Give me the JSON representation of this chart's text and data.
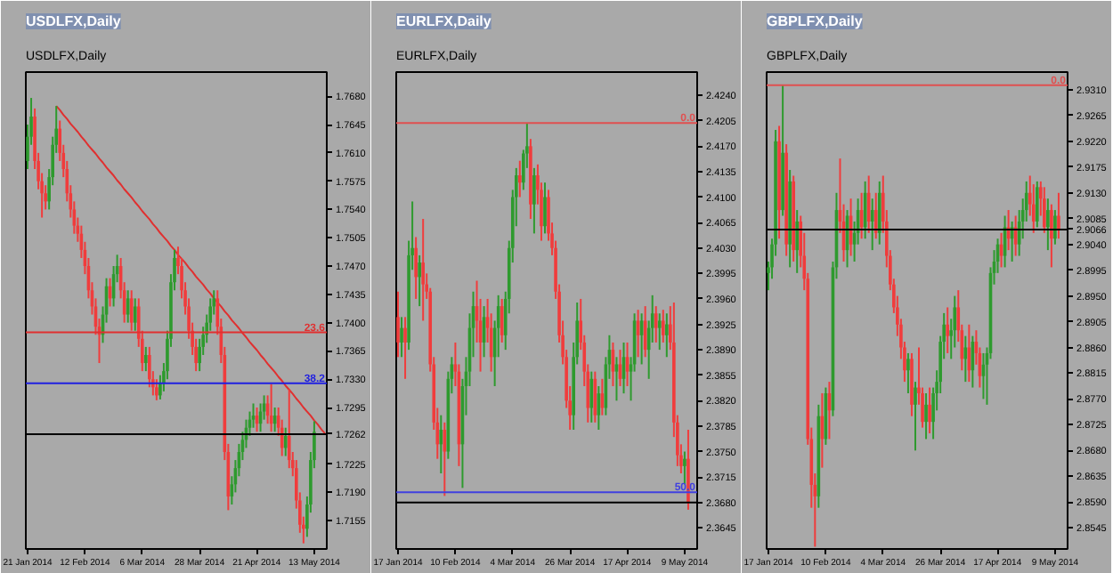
{
  "chart_data": [
    {
      "type": "candlestick",
      "title": "USDLFX,Daily",
      "subtitle": "USDLFX,Daily",
      "categories": [
        "21 Jan 2014",
        null,
        null,
        null,
        null,
        null,
        null,
        null,
        null,
        null,
        null,
        null,
        null,
        null,
        null,
        null,
        "12 Feb 2014",
        null,
        null,
        null,
        null,
        null,
        null,
        null,
        null,
        null,
        null,
        null,
        null,
        null,
        null,
        null,
        "6 Mar 2014",
        null,
        null,
        null,
        null,
        null,
        null,
        null,
        null,
        null,
        null,
        null,
        null,
        null,
        null,
        null,
        "28 Mar 2014",
        null,
        null,
        null,
        null,
        null,
        null,
        null,
        null,
        null,
        null,
        null,
        null,
        null,
        null,
        null,
        "21 Apr 2014",
        null,
        null,
        null,
        null,
        null,
        null,
        null,
        null,
        null,
        null,
        null,
        null,
        null,
        null,
        null,
        "13 May 2014",
        null,
        null,
        null
      ],
      "ohlc": [
        [
          1.76,
          1.7645,
          1.759,
          1.763
        ],
        [
          1.763,
          1.7678,
          1.762,
          1.7655
        ],
        [
          1.7655,
          1.7665,
          1.759,
          1.76
        ],
        [
          1.76,
          1.761,
          1.7565,
          1.7575
        ],
        [
          1.7575,
          1.7585,
          1.753,
          1.756
        ],
        [
          1.756,
          1.757,
          1.754,
          1.755
        ],
        [
          1.755,
          1.759,
          1.754,
          1.758
        ],
        [
          1.758,
          1.763,
          1.757,
          1.762
        ],
        [
          1.762,
          1.7668,
          1.761,
          1.764
        ],
        [
          1.764,
          1.765,
          1.76,
          1.761
        ],
        [
          1.761,
          1.762,
          1.758,
          1.759
        ],
        [
          1.759,
          1.76,
          1.755,
          1.756
        ],
        [
          1.756,
          1.757,
          1.753,
          1.754
        ],
        [
          1.754,
          1.755,
          1.751,
          1.752
        ],
        [
          1.752,
          1.753,
          1.75,
          1.751
        ],
        [
          1.751,
          1.752,
          1.748,
          1.749
        ],
        [
          1.749,
          1.75,
          1.746,
          1.747
        ],
        [
          1.747,
          1.748,
          1.743,
          1.744
        ],
        [
          1.744,
          1.745,
          1.741,
          1.742
        ],
        [
          1.742,
          1.743,
          1.7385,
          1.7395
        ],
        [
          1.7395,
          1.7405,
          1.735,
          1.7385
        ],
        [
          1.7385,
          1.742,
          1.7375,
          1.741
        ],
        [
          1.741,
          1.7455,
          1.74,
          1.7445
        ],
        [
          1.7445,
          1.7455,
          1.742,
          1.743
        ],
        [
          1.743,
          1.747,
          1.742,
          1.746
        ],
        [
          1.746,
          1.7484,
          1.745,
          1.747
        ],
        [
          1.747,
          1.748,
          1.743,
          1.744
        ],
        [
          1.744,
          1.745,
          1.74,
          1.741
        ],
        [
          1.741,
          1.744,
          1.74,
          1.743
        ],
        [
          1.743,
          1.744,
          1.739,
          1.74
        ],
        [
          1.74,
          1.743,
          1.739,
          1.742
        ],
        [
          1.742,
          1.743,
          1.737,
          1.738
        ],
        [
          1.738,
          1.739,
          1.734,
          1.735
        ],
        [
          1.735,
          1.737,
          1.734,
          1.736
        ],
        [
          1.736,
          1.737,
          1.732,
          1.733
        ],
        [
          1.733,
          1.734,
          1.731,
          1.732
        ],
        [
          1.732,
          1.733,
          1.7304,
          1.731
        ],
        [
          1.731,
          1.7335,
          1.7305,
          1.7325
        ],
        [
          1.7325,
          1.735,
          1.7315,
          1.734
        ],
        [
          1.734,
          1.739,
          1.733,
          1.738
        ],
        [
          1.738,
          1.746,
          1.737,
          1.745
        ],
        [
          1.745,
          1.749,
          1.744,
          1.748
        ],
        [
          1.748,
          1.7494,
          1.746,
          1.747
        ],
        [
          1.747,
          1.748,
          1.743,
          1.744
        ],
        [
          1.744,
          1.745,
          1.741,
          1.742
        ],
        [
          1.742,
          1.743,
          1.738,
          1.739
        ],
        [
          1.739,
          1.74,
          1.736,
          1.737
        ],
        [
          1.737,
          1.738,
          1.734,
          1.735
        ],
        [
          1.735,
          1.738,
          1.734,
          1.737
        ],
        [
          1.737,
          1.7395,
          1.736,
          1.7385
        ],
        [
          1.7385,
          1.741,
          1.7375,
          1.74
        ],
        [
          1.74,
          1.743,
          1.739,
          1.742
        ],
        [
          1.742,
          1.744,
          1.741,
          1.743
        ],
        [
          1.743,
          1.744,
          1.7385,
          1.7395
        ],
        [
          1.7395,
          1.7405,
          1.735,
          1.736
        ],
        [
          1.736,
          1.737,
          1.723,
          1.724
        ],
        [
          1.724,
          1.725,
          1.7168,
          1.7185
        ],
        [
          1.7185,
          1.721,
          1.7175,
          1.72
        ],
        [
          1.72,
          1.723,
          1.719,
          1.722
        ],
        [
          1.722,
          1.725,
          1.721,
          1.724
        ],
        [
          1.724,
          1.7265,
          1.723,
          1.7255
        ],
        [
          1.7255,
          1.728,
          1.7245,
          1.727
        ],
        [
          1.727,
          1.729,
          1.726,
          1.728
        ],
        [
          1.728,
          1.73,
          1.727,
          1.7285
        ],
        [
          1.7285,
          1.7295,
          1.7265,
          1.7275
        ],
        [
          1.7275,
          1.73,
          1.7265,
          1.729
        ],
        [
          1.729,
          1.731,
          1.728,
          1.73
        ],
        [
          1.73,
          1.731,
          1.7275,
          1.7285
        ],
        [
          1.7285,
          1.7324,
          1.7265,
          1.7275
        ],
        [
          1.7275,
          1.7295,
          1.7265,
          1.7285
        ],
        [
          1.7285,
          1.7295,
          1.726,
          1.727
        ],
        [
          1.727,
          1.728,
          1.7235,
          1.7245
        ],
        [
          1.7245,
          1.727,
          1.7235,
          1.726
        ],
        [
          1.726,
          1.7318,
          1.722,
          1.723
        ],
        [
          1.723,
          1.724,
          1.721,
          1.722
        ],
        [
          1.722,
          1.723,
          1.717,
          1.718
        ],
        [
          1.718,
          1.719,
          1.714,
          1.715
        ],
        [
          1.715,
          1.716,
          1.7127,
          1.7145
        ],
        [
          1.7145,
          1.7185,
          1.7135,
          1.7175
        ],
        [
          1.7175,
          1.724,
          1.7165,
          1.723
        ],
        [
          1.723,
          1.7278,
          1.722,
          1.7265
        ],
        null,
        null,
        null
      ],
      "series": [
        {
          "type": "line",
          "color": "#e03030",
          "values": [
            null,
            null,
            null,
            null,
            null,
            null,
            null,
            null,
            1.7668,
            1.7663,
            1.7657,
            1.7652,
            1.7646,
            1.7641,
            1.7636,
            1.763,
            1.7625,
            1.7619,
            1.7614,
            1.7609,
            1.7603,
            1.7598,
            1.7592,
            1.7587,
            1.7582,
            1.7576,
            1.7571,
            1.7565,
            1.756,
            1.7555,
            1.7549,
            1.7544,
            1.7538,
            1.7533,
            1.7528,
            1.7522,
            1.7517,
            1.7511,
            1.7506,
            1.7501,
            1.7495,
            1.749,
            1.7484,
            1.7479,
            1.7474,
            1.7468,
            1.7463,
            1.7457,
            1.7452,
            1.7447,
            1.7441,
            1.7436,
            1.743,
            1.7425,
            1.742,
            1.7414,
            1.7409,
            1.7403,
            1.7398,
            1.7393,
            1.7387,
            1.7382,
            1.7376,
            1.7371,
            1.7366,
            1.736,
            1.7355,
            1.7349,
            1.7344,
            1.7339,
            1.7333,
            1.7328,
            1.7322,
            1.7317,
            1.7312,
            1.7306,
            1.7301,
            1.7295,
            1.729,
            1.7285,
            1.7279,
            1.7274,
            1.7268,
            1.7263
          ]
        }
      ],
      "ylim": [
        1.712,
        1.771
      ],
      "yticks": [
        {
          "value": 1.768,
          "label": "1.7680"
        },
        1.7645,
        {
          "value": 1.761,
          "label": "1.7610"
        },
        1.7575,
        {
          "value": 1.754,
          "label": "1.7540"
        },
        1.7505,
        {
          "value": 1.747,
          "label": "1.7470"
        },
        1.7435,
        {
          "value": 1.74,
          "label": "1.7400"
        },
        1.7365,
        {
          "value": 1.733,
          "label": "1.7330"
        },
        1.7295,
        1.7225,
        {
          "value": 1.719,
          "label": "1.7190"
        },
        1.7155
      ],
      "annotations": [
        {
          "text": "23.6",
          "y": 1.7388
        },
        {
          "text": "38.2",
          "y": 1.7325
        }
      ],
      "ref_lines": [
        {
          "axis": "y",
          "value": 1.7388,
          "color": "#e03030"
        },
        {
          "axis": "y",
          "value": 1.7325,
          "color": "#2020e0"
        },
        {
          "axis": "y",
          "value": 1.7262,
          "label": "1.7262",
          "color": "#000000"
        }
      ]
    },
    {
      "type": "candlestick",
      "title": "EURLFX,Daily",
      "subtitle": "EURLFX,Daily",
      "categories": [
        "17 Jan 2014",
        null,
        null,
        null,
        null,
        null,
        null,
        null,
        null,
        null,
        null,
        null,
        null,
        null,
        null,
        null,
        "10 Feb 2014",
        null,
        null,
        null,
        null,
        null,
        null,
        null,
        null,
        null,
        null,
        null,
        null,
        null,
        null,
        null,
        "4 Mar 2014",
        null,
        null,
        null,
        null,
        null,
        null,
        null,
        null,
        null,
        null,
        null,
        null,
        null,
        null,
        null,
        "26 Mar 2014",
        null,
        null,
        null,
        null,
        null,
        null,
        null,
        null,
        null,
        null,
        null,
        null,
        null,
        null,
        null,
        "17 Apr 2014",
        null,
        null,
        null,
        null,
        null,
        null,
        null,
        null,
        null,
        null,
        null,
        null,
        null,
        null,
        null,
        "9 May 2014",
        null,
        null,
        null
      ],
      "ohlc": [
        [
          2.3935,
          2.397,
          2.388,
          2.39
        ],
        [
          2.39,
          2.3935,
          2.388,
          2.392
        ],
        [
          2.392,
          2.3935,
          2.385,
          2.39
        ],
        [
          2.39,
          2.404,
          2.389,
          2.402
        ],
        [
          2.402,
          2.4094,
          2.4,
          2.403
        ],
        [
          2.403,
          2.4045,
          2.396,
          2.399
        ],
        [
          2.399,
          2.402,
          2.395,
          2.401
        ],
        [
          2.401,
          2.407,
          2.393,
          2.398
        ],
        [
          2.398,
          2.3995,
          2.396,
          2.397
        ],
        [
          2.397,
          2.3975,
          2.386,
          2.387
        ],
        [
          2.387,
          2.388,
          2.378,
          2.379
        ],
        [
          2.379,
          2.381,
          2.374,
          2.376
        ],
        [
          2.376,
          2.38,
          2.372,
          2.378
        ],
        [
          2.378,
          2.379,
          2.3689,
          2.375
        ],
        [
          2.375,
          2.386,
          2.374,
          2.385
        ],
        [
          2.385,
          2.388,
          2.383,
          2.387
        ],
        [
          2.387,
          2.39,
          2.384,
          2.386
        ],
        [
          2.386,
          2.387,
          2.373,
          2.376
        ],
        [
          2.376,
          2.385,
          2.37,
          2.384
        ],
        [
          2.384,
          2.388,
          2.38,
          2.386
        ],
        [
          2.386,
          2.394,
          2.384,
          2.392
        ],
        [
          2.392,
          2.397,
          2.388,
          2.395
        ],
        [
          2.395,
          2.3985,
          2.39,
          2.393
        ],
        [
          2.393,
          2.396,
          2.386,
          2.39
        ],
        [
          2.39,
          2.395,
          2.388,
          2.3935
        ],
        [
          2.3935,
          2.396,
          2.39,
          2.392
        ],
        [
          2.392,
          2.394,
          2.386,
          2.388
        ],
        [
          2.388,
          2.393,
          2.384,
          2.392
        ],
        [
          2.392,
          2.3965,
          2.388,
          2.395
        ],
        [
          2.395,
          2.396,
          2.39,
          2.391
        ],
        [
          2.391,
          2.397,
          2.389,
          2.396
        ],
        [
          2.396,
          2.404,
          2.394,
          2.403
        ],
        [
          2.403,
          2.411,
          2.401,
          2.41
        ],
        [
          2.41,
          2.414,
          2.406,
          2.413
        ],
        [
          2.413,
          2.415,
          2.41,
          2.412
        ],
        [
          2.412,
          2.4165,
          2.411,
          2.416
        ],
        [
          2.416,
          2.4202,
          2.414,
          2.417
        ],
        [
          2.417,
          2.418,
          2.407,
          2.409
        ],
        [
          2.409,
          2.414,
          2.405,
          2.413
        ],
        [
          2.413,
          2.4145,
          2.409,
          2.411
        ],
        [
          2.411,
          2.412,
          2.404,
          2.406
        ],
        [
          2.406,
          2.412,
          2.405,
          2.41
        ],
        [
          2.41,
          2.411,
          2.404,
          2.405
        ],
        [
          2.405,
          2.4065,
          2.402,
          2.403
        ],
        [
          2.403,
          2.404,
          2.396,
          2.397
        ],
        [
          2.397,
          2.398,
          2.39,
          2.391
        ],
        [
          2.391,
          2.393,
          2.387,
          2.388
        ],
        [
          2.388,
          2.389,
          2.381,
          2.382
        ],
        [
          2.382,
          2.384,
          2.378,
          2.38
        ],
        [
          2.38,
          2.39,
          2.378,
          2.388
        ],
        [
          2.388,
          2.3955,
          2.387,
          2.393
        ],
        [
          2.393,
          2.396,
          2.389,
          2.39
        ],
        [
          2.39,
          2.391,
          2.384,
          2.386
        ],
        [
          2.386,
          2.387,
          2.379,
          2.381
        ],
        [
          2.381,
          2.386,
          2.379,
          2.385
        ],
        [
          2.385,
          2.386,
          2.379,
          2.38
        ],
        [
          2.38,
          2.384,
          2.378,
          2.383
        ],
        [
          2.383,
          2.385,
          2.38,
          2.381
        ],
        [
          2.381,
          2.388,
          2.38,
          2.387
        ],
        [
          2.387,
          2.391,
          2.385,
          2.389
        ],
        [
          2.389,
          2.39,
          2.384,
          2.386
        ],
        [
          2.386,
          2.388,
          2.382,
          2.387
        ],
        [
          2.387,
          2.389,
          2.384,
          2.385
        ],
        [
          2.385,
          2.39,
          2.383,
          2.388
        ],
        [
          2.388,
          2.39,
          2.384,
          2.386
        ],
        [
          2.386,
          2.388,
          2.382,
          2.387
        ],
        [
          2.387,
          2.394,
          2.386,
          2.393
        ],
        [
          2.393,
          2.3945,
          2.388,
          2.391
        ],
        [
          2.391,
          2.394,
          2.387,
          2.393
        ],
        [
          2.393,
          2.395,
          2.388,
          2.389
        ],
        [
          2.389,
          2.393,
          2.385,
          2.392
        ],
        [
          2.392,
          2.3965,
          2.39,
          2.394
        ],
        [
          2.394,
          2.395,
          2.39,
          2.392
        ],
        [
          2.392,
          2.394,
          2.389,
          2.393
        ],
        [
          2.393,
          2.3945,
          2.39,
          2.391
        ],
        [
          2.391,
          2.394,
          2.388,
          2.3925
        ],
        [
          2.3925,
          2.395,
          2.389,
          2.39
        ],
        [
          2.39,
          2.3955,
          2.377,
          2.379
        ],
        [
          2.379,
          2.38,
          2.373,
          2.3745
        ],
        [
          2.3745,
          2.376,
          2.372,
          2.373
        ],
        [
          2.373,
          2.375,
          2.3705,
          2.374
        ],
        [
          2.374,
          2.378,
          2.367,
          2.368
        ],
        null,
        null
      ],
      "ylim": [
        2.3616,
        2.4272
      ],
      "yticks": [
        {
          "value": 2.424,
          "label": "2.4240"
        },
        2.4205,
        {
          "value": 2.417,
          "label": "2.4170"
        },
        2.4135,
        {
          "value": 2.41,
          "label": "2.4100"
        },
        2.4065,
        {
          "value": 2.403,
          "label": "2.4030"
        },
        2.3995,
        {
          "value": 2.396,
          "label": "2.3960"
        },
        2.3925,
        {
          "value": 2.389,
          "label": "2.3890"
        },
        2.3855,
        {
          "value": 2.382,
          "label": "2.3820"
        },
        2.3785,
        {
          "value": 2.375,
          "label": "2.3750"
        },
        2.3715,
        2.3645
      ],
      "annotations": [
        {
          "text": "0.0",
          "y": 2.4202
        },
        {
          "text": "50.0",
          "y": 2.3694
        }
      ],
      "ref_lines": [
        {
          "axis": "y",
          "value": 2.4202,
          "color": "#e05050"
        },
        {
          "axis": "y",
          "value": 2.3694,
          "color": "#4040e0"
        },
        {
          "axis": "y",
          "value": 2.368,
          "label": "2.3680",
          "color": "#000000"
        }
      ]
    },
    {
      "type": "candlestick",
      "title": "GBPLFX,Daily",
      "subtitle": "GBPLFX,Daily",
      "categories": [
        "17 Jan 2014",
        null,
        null,
        null,
        null,
        null,
        null,
        null,
        null,
        null,
        null,
        null,
        null,
        null,
        null,
        null,
        "10 Feb 2014",
        null,
        null,
        null,
        null,
        null,
        null,
        null,
        null,
        null,
        null,
        null,
        null,
        null,
        null,
        null,
        "4 Mar 2014",
        null,
        null,
        null,
        null,
        null,
        null,
        null,
        null,
        null,
        null,
        null,
        null,
        null,
        null,
        null,
        "26 Mar 2014",
        null,
        null,
        null,
        null,
        null,
        null,
        null,
        null,
        null,
        null,
        null,
        null,
        null,
        null,
        null,
        "17 Apr 2014",
        null,
        null,
        null,
        null,
        null,
        null,
        null,
        null,
        null,
        null,
        null,
        null,
        null,
        null,
        null,
        "9 May 2014",
        null,
        null,
        null
      ],
      "ohlc": [
        [
          2.899,
          2.901,
          2.896,
          2.9
        ],
        [
          2.9,
          2.905,
          2.898,
          2.904
        ],
        [
          2.904,
          2.924,
          2.902,
          2.922
        ],
        [
          2.922,
          2.9247,
          2.905,
          2.91
        ],
        [
          2.91,
          2.9319,
          2.909,
          2.92
        ],
        [
          2.92,
          2.9215,
          2.902,
          2.904
        ],
        [
          2.904,
          2.917,
          2.9,
          2.915
        ],
        [
          2.915,
          2.916,
          2.901,
          2.903
        ],
        [
          2.903,
          2.91,
          2.899,
          2.908
        ],
        [
          2.908,
          2.909,
          2.9,
          2.902
        ],
        [
          2.902,
          2.906,
          2.896,
          2.898
        ],
        [
          2.898,
          2.899,
          2.869,
          2.87
        ],
        [
          2.87,
          2.872,
          2.858,
          2.862
        ],
        [
          2.862,
          2.864,
          2.8512,
          2.86
        ],
        [
          2.86,
          2.876,
          2.858,
          2.874
        ],
        [
          2.874,
          2.878,
          2.865,
          2.87
        ],
        [
          2.87,
          2.879,
          2.869,
          2.878
        ],
        [
          2.878,
          2.88,
          2.87,
          2.875
        ],
        [
          2.875,
          2.901,
          2.874,
          2.9
        ],
        [
          2.9,
          2.913,
          2.898,
          2.91
        ],
        [
          2.91,
          2.919,
          2.906,
          2.908
        ],
        [
          2.908,
          2.911,
          2.901,
          2.903
        ],
        [
          2.903,
          2.91,
          2.9,
          2.909
        ],
        [
          2.909,
          2.912,
          2.902,
          2.904
        ],
        [
          2.904,
          2.908,
          2.901,
          2.906
        ],
        [
          2.906,
          2.912,
          2.904,
          2.91
        ],
        [
          2.91,
          2.913,
          2.905,
          2.907
        ],
        [
          2.907,
          2.915,
          2.905,
          2.913
        ],
        [
          2.913,
          2.916,
          2.906,
          2.908
        ],
        [
          2.908,
          2.912,
          2.903,
          2.91
        ],
        [
          2.91,
          2.913,
          2.905,
          2.906
        ],
        [
          2.906,
          2.915,
          2.904,
          2.913
        ],
        [
          2.913,
          2.916,
          2.906,
          2.908
        ],
        [
          2.908,
          2.91,
          2.9,
          2.902
        ],
        [
          2.902,
          2.903,
          2.896,
          2.897
        ],
        [
          2.897,
          2.898,
          2.892,
          2.893
        ],
        [
          2.893,
          2.895,
          2.888,
          2.89
        ],
        [
          2.89,
          2.891,
          2.884,
          2.886
        ],
        [
          2.886,
          2.887,
          2.88,
          2.882
        ],
        [
          2.882,
          2.885,
          2.878,
          2.884
        ],
        [
          2.884,
          2.885,
          2.874,
          2.876
        ],
        [
          2.876,
          2.88,
          2.868,
          2.879
        ],
        [
          2.879,
          2.886,
          2.876,
          2.878
        ],
        [
          2.878,
          2.879,
          2.872,
          2.873
        ],
        [
          2.873,
          2.878,
          2.87,
          2.876
        ],
        [
          2.876,
          2.879,
          2.871,
          2.873
        ],
        [
          2.873,
          2.879,
          2.87,
          2.878
        ],
        [
          2.878,
          2.882,
          2.875,
          2.88
        ],
        [
          2.88,
          2.888,
          2.878,
          2.887
        ],
        [
          2.887,
          2.892,
          2.884,
          2.89
        ],
        [
          2.89,
          2.893,
          2.885,
          2.888
        ],
        [
          2.888,
          2.891,
          2.884,
          2.889
        ],
        [
          2.889,
          2.895,
          2.886,
          2.893
        ],
        [
          2.893,
          2.896,
          2.887,
          2.889
        ],
        [
          2.889,
          2.89,
          2.882,
          2.884
        ],
        [
          2.884,
          2.888,
          2.88,
          2.886
        ],
        [
          2.886,
          2.89,
          2.88,
          2.882
        ],
        [
          2.882,
          2.888,
          2.879,
          2.887
        ],
        [
          2.887,
          2.889,
          2.883,
          2.885
        ],
        [
          2.885,
          2.886,
          2.879,
          2.881
        ],
        [
          2.881,
          2.885,
          2.877,
          2.883
        ],
        [
          2.883,
          2.886,
          2.876,
          2.885
        ],
        [
          2.885,
          2.9,
          2.884,
          2.899
        ],
        [
          2.899,
          2.903,
          2.897,
          2.901
        ],
        [
          2.901,
          2.905,
          2.899,
          2.904
        ],
        [
          2.904,
          2.906,
          2.9,
          2.902
        ],
        [
          2.902,
          2.909,
          2.9,
          2.907
        ],
        [
          2.907,
          2.91,
          2.903,
          2.905
        ],
        [
          2.905,
          2.908,
          2.901,
          2.907
        ],
        [
          2.907,
          2.909,
          2.902,
          2.904
        ],
        [
          2.904,
          2.91,
          2.902,
          2.908
        ],
        [
          2.908,
          2.912,
          2.905,
          2.91
        ],
        [
          2.91,
          2.915,
          2.908,
          2.913
        ],
        [
          2.913,
          2.916,
          2.909,
          2.911
        ],
        [
          2.911,
          2.9145,
          2.906,
          2.908
        ],
        [
          2.908,
          2.915,
          2.907,
          2.914
        ],
        [
          2.914,
          2.915,
          2.909,
          2.912
        ],
        [
          2.912,
          2.914,
          2.906,
          2.907
        ],
        [
          2.907,
          2.912,
          2.903,
          2.91
        ],
        [
          2.91,
          2.911,
          2.9,
          2.905
        ],
        [
          2.905,
          2.91,
          2.904,
          2.909
        ],
        [
          2.909,
          2.913,
          2.905,
          2.9066
        ],
        null,
        null
      ],
      "ylim": [
        2.8508,
        2.9341
      ],
      "yticks": [
        {
          "value": 2.931,
          "label": "2.9310"
        },
        2.9265,
        {
          "value": 2.922,
          "label": "2.9220"
        },
        2.9175,
        {
          "value": 2.913,
          "label": "2.9130"
        },
        2.9085,
        {
          "value": 2.904,
          "label": "2.9040"
        },
        2.8995,
        {
          "value": 2.895,
          "label": "2.8950"
        },
        2.8905,
        {
          "value": 2.886,
          "label": "2.8860"
        },
        2.8815,
        {
          "value": 2.877,
          "label": "2.8770"
        },
        2.8725,
        {
          "value": 2.868,
          "label": "2.8680"
        },
        2.8635,
        {
          "value": 2.859,
          "label": "2.8590"
        },
        2.8545
      ],
      "annotations": [
        {
          "text": "0.0",
          "y": 2.9318
        }
      ],
      "ref_lines": [
        {
          "axis": "y",
          "value": 2.9318,
          "color": "#e05050"
        },
        {
          "axis": "y",
          "value": 2.9066,
          "label": "2.9066",
          "color": "#000000"
        }
      ]
    }
  ]
}
